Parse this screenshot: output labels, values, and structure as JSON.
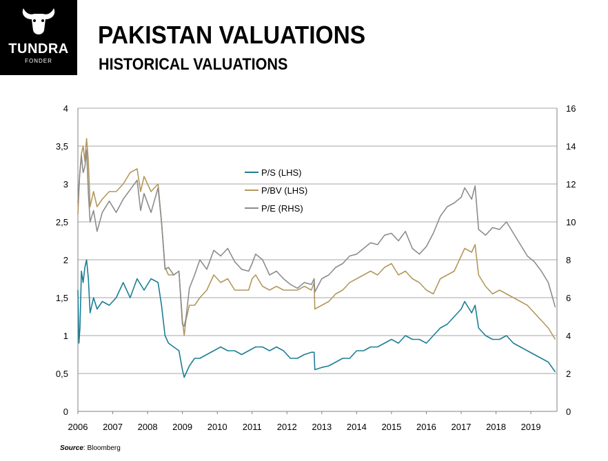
{
  "header": {
    "brand": "TUNDRA",
    "brand_sub": "FONDER",
    "title": "PAKISTAN VALUATIONS",
    "subtitle": "HISTORICAL VALUATIONS"
  },
  "source": {
    "label": "Source",
    "text": ": Bloomberg"
  },
  "colors": {
    "ps": "#1b7d93",
    "pbv": "#b3975b",
    "pe": "#8c8c8c",
    "grid": "#a6a6a6",
    "logo_bg": "#000000"
  },
  "chart_data": {
    "type": "line",
    "x_ticks": [
      "2006",
      "2007",
      "2008",
      "2009",
      "2010",
      "2011",
      "2012",
      "2013",
      "2014",
      "2015",
      "2016",
      "2017",
      "2018",
      "2019"
    ],
    "xlim": [
      2006.0,
      2019.75
    ],
    "left_axis": {
      "ticks": [
        "0",
        "0,5",
        "1",
        "1,5",
        "2",
        "2,5",
        "3",
        "3,5",
        "4"
      ],
      "ylim": [
        0,
        4
      ]
    },
    "right_axis": {
      "ticks": [
        "0",
        "2",
        "4",
        "6",
        "8",
        "10",
        "12",
        "14",
        "16"
      ],
      "ylim": [
        0,
        16
      ]
    },
    "grid": true,
    "legend_position": "top-center",
    "series": [
      {
        "name": "P/S (LHS)",
        "axis": "left",
        "color": "#1b7d93",
        "x": [
          2006.0,
          2006.03,
          2006.06,
          2006.1,
          2006.15,
          2006.2,
          2006.25,
          2006.3,
          2006.35,
          2006.45,
          2006.55,
          2006.7,
          2006.9,
          2007.1,
          2007.3,
          2007.5,
          2007.7,
          2007.9,
          2008.1,
          2008.3,
          2008.4,
          2008.5,
          2008.6,
          2008.75,
          2008.9,
          2009.0,
          2009.05,
          2009.1,
          2009.2,
          2009.35,
          2009.5,
          2009.7,
          2009.9,
          2010.1,
          2010.3,
          2010.5,
          2010.7,
          2010.9,
          2011.1,
          2011.3,
          2011.5,
          2011.7,
          2011.9,
          2012.1,
          2012.3,
          2012.5,
          2012.7,
          2012.78,
          2012.8,
          2013.0,
          2013.2,
          2013.4,
          2013.6,
          2013.8,
          2014.0,
          2014.2,
          2014.4,
          2014.6,
          2014.8,
          2015.0,
          2015.2,
          2015.4,
          2015.6,
          2015.8,
          2016.0,
          2016.2,
          2016.4,
          2016.6,
          2016.8,
          2017.0,
          2017.1,
          2017.3,
          2017.4,
          2017.5,
          2017.7,
          2017.9,
          2018.1,
          2018.3,
          2018.5,
          2018.7,
          2018.9,
          2019.1,
          2019.3,
          2019.5,
          2019.7
        ],
        "y": [
          1.6,
          0.9,
          1.1,
          1.85,
          1.7,
          1.9,
          2.0,
          1.75,
          1.3,
          1.5,
          1.35,
          1.45,
          1.4,
          1.5,
          1.7,
          1.5,
          1.75,
          1.6,
          1.75,
          1.7,
          1.4,
          1.0,
          0.9,
          0.85,
          0.8,
          0.55,
          0.45,
          0.5,
          0.6,
          0.7,
          0.7,
          0.75,
          0.8,
          0.85,
          0.8,
          0.8,
          0.75,
          0.8,
          0.85,
          0.85,
          0.8,
          0.85,
          0.8,
          0.7,
          0.7,
          0.75,
          0.78,
          0.78,
          0.55,
          0.58,
          0.6,
          0.65,
          0.7,
          0.7,
          0.8,
          0.8,
          0.85,
          0.85,
          0.9,
          0.95,
          0.9,
          1.0,
          0.95,
          0.95,
          0.9,
          1.0,
          1.1,
          1.15,
          1.25,
          1.35,
          1.45,
          1.3,
          1.4,
          1.1,
          1.0,
          0.95,
          0.95,
          1.0,
          0.9,
          0.85,
          0.8,
          0.75,
          0.7,
          0.65,
          0.52
        ]
      },
      {
        "name": "P/BV (LHS)",
        "axis": "left",
        "color": "#b3975b",
        "x": [
          2006.0,
          2006.05,
          2006.1,
          2006.15,
          2006.2,
          2006.25,
          2006.3,
          2006.35,
          2006.45,
          2006.55,
          2006.7,
          2006.9,
          2007.1,
          2007.3,
          2007.5,
          2007.7,
          2007.8,
          2007.9,
          2008.1,
          2008.3,
          2008.4,
          2008.5,
          2008.6,
          2008.75,
          2008.9,
          2009.0,
          2009.05,
          2009.1,
          2009.2,
          2009.35,
          2009.5,
          2009.7,
          2009.9,
          2010.1,
          2010.3,
          2010.5,
          2010.7,
          2010.9,
          2011.0,
          2011.1,
          2011.3,
          2011.5,
          2011.7,
          2011.9,
          2012.1,
          2012.3,
          2012.5,
          2012.7,
          2012.78,
          2012.8,
          2013.0,
          2013.2,
          2013.4,
          2013.6,
          2013.8,
          2014.0,
          2014.2,
          2014.4,
          2014.6,
          2014.8,
          2015.0,
          2015.2,
          2015.4,
          2015.6,
          2015.8,
          2016.0,
          2016.2,
          2016.4,
          2016.6,
          2016.8,
          2017.0,
          2017.1,
          2017.3,
          2017.4,
          2017.5,
          2017.7,
          2017.9,
          2018.1,
          2018.3,
          2018.5,
          2018.7,
          2018.9,
          2019.1,
          2019.3,
          2019.5,
          2019.7
        ],
        "y": [
          2.6,
          3.1,
          3.4,
          3.5,
          3.3,
          3.6,
          3.3,
          2.7,
          2.9,
          2.7,
          2.8,
          2.9,
          2.9,
          3.0,
          3.15,
          3.2,
          2.9,
          3.1,
          2.9,
          3.0,
          2.5,
          1.9,
          1.8,
          1.8,
          1.85,
          1.2,
          1.0,
          1.2,
          1.4,
          1.4,
          1.5,
          1.6,
          1.8,
          1.7,
          1.75,
          1.6,
          1.6,
          1.6,
          1.75,
          1.8,
          1.65,
          1.6,
          1.65,
          1.6,
          1.6,
          1.6,
          1.65,
          1.6,
          1.7,
          1.35,
          1.4,
          1.45,
          1.55,
          1.6,
          1.7,
          1.75,
          1.8,
          1.85,
          1.8,
          1.9,
          1.95,
          1.8,
          1.85,
          1.75,
          1.7,
          1.6,
          1.55,
          1.75,
          1.8,
          1.85,
          2.05,
          2.15,
          2.1,
          2.2,
          1.8,
          1.65,
          1.55,
          1.6,
          1.55,
          1.5,
          1.45,
          1.4,
          1.3,
          1.2,
          1.1,
          0.95
        ]
      },
      {
        "name": "P/E (RHS)",
        "axis": "right",
        "color": "#8c8c8c",
        "x": [
          2006.0,
          2006.05,
          2006.1,
          2006.15,
          2006.2,
          2006.25,
          2006.3,
          2006.35,
          2006.45,
          2006.55,
          2006.7,
          2006.9,
          2007.1,
          2007.3,
          2007.5,
          2007.7,
          2007.8,
          2007.9,
          2008.1,
          2008.3,
          2008.4,
          2008.5,
          2008.6,
          2008.75,
          2008.9,
          2009.0,
          2009.05,
          2009.1,
          2009.2,
          2009.35,
          2009.5,
          2009.7,
          2009.9,
          2010.1,
          2010.3,
          2010.5,
          2010.7,
          2010.9,
          2011.0,
          2011.1,
          2011.3,
          2011.5,
          2011.7,
          2011.9,
          2012.1,
          2012.3,
          2012.5,
          2012.7,
          2012.78,
          2012.8,
          2013.0,
          2013.2,
          2013.4,
          2013.6,
          2013.8,
          2014.0,
          2014.2,
          2014.4,
          2014.6,
          2014.8,
          2015.0,
          2015.2,
          2015.4,
          2015.6,
          2015.8,
          2016.0,
          2016.2,
          2016.4,
          2016.6,
          2016.8,
          2017.0,
          2017.1,
          2017.3,
          2017.4,
          2017.5,
          2017.7,
          2017.9,
          2018.1,
          2018.3,
          2018.5,
          2018.7,
          2018.9,
          2019.1,
          2019.3,
          2019.5,
          2019.7
        ],
        "y": [
          11.0,
          12.5,
          13.5,
          12.6,
          12.9,
          13.8,
          11.5,
          10.0,
          10.6,
          9.5,
          10.5,
          11.1,
          10.5,
          11.2,
          11.7,
          12.2,
          10.6,
          11.5,
          10.5,
          11.8,
          10.0,
          7.5,
          7.6,
          7.2,
          7.4,
          4.6,
          4.5,
          4.9,
          6.5,
          7.2,
          8.0,
          7.5,
          8.5,
          8.2,
          8.6,
          7.9,
          7.5,
          7.4,
          7.8,
          8.3,
          8.0,
          7.2,
          7.4,
          7.0,
          6.7,
          6.5,
          6.8,
          6.7,
          7.0,
          6.3,
          7.0,
          7.2,
          7.6,
          7.8,
          8.2,
          8.3,
          8.6,
          8.9,
          8.8,
          9.3,
          9.4,
          9.0,
          9.5,
          8.6,
          8.3,
          8.7,
          9.4,
          10.3,
          10.8,
          11.0,
          11.3,
          11.8,
          11.2,
          11.9,
          9.6,
          9.3,
          9.7,
          9.6,
          10.0,
          9.4,
          8.8,
          8.2,
          7.9,
          7.4,
          6.8,
          5.5
        ]
      }
    ]
  }
}
